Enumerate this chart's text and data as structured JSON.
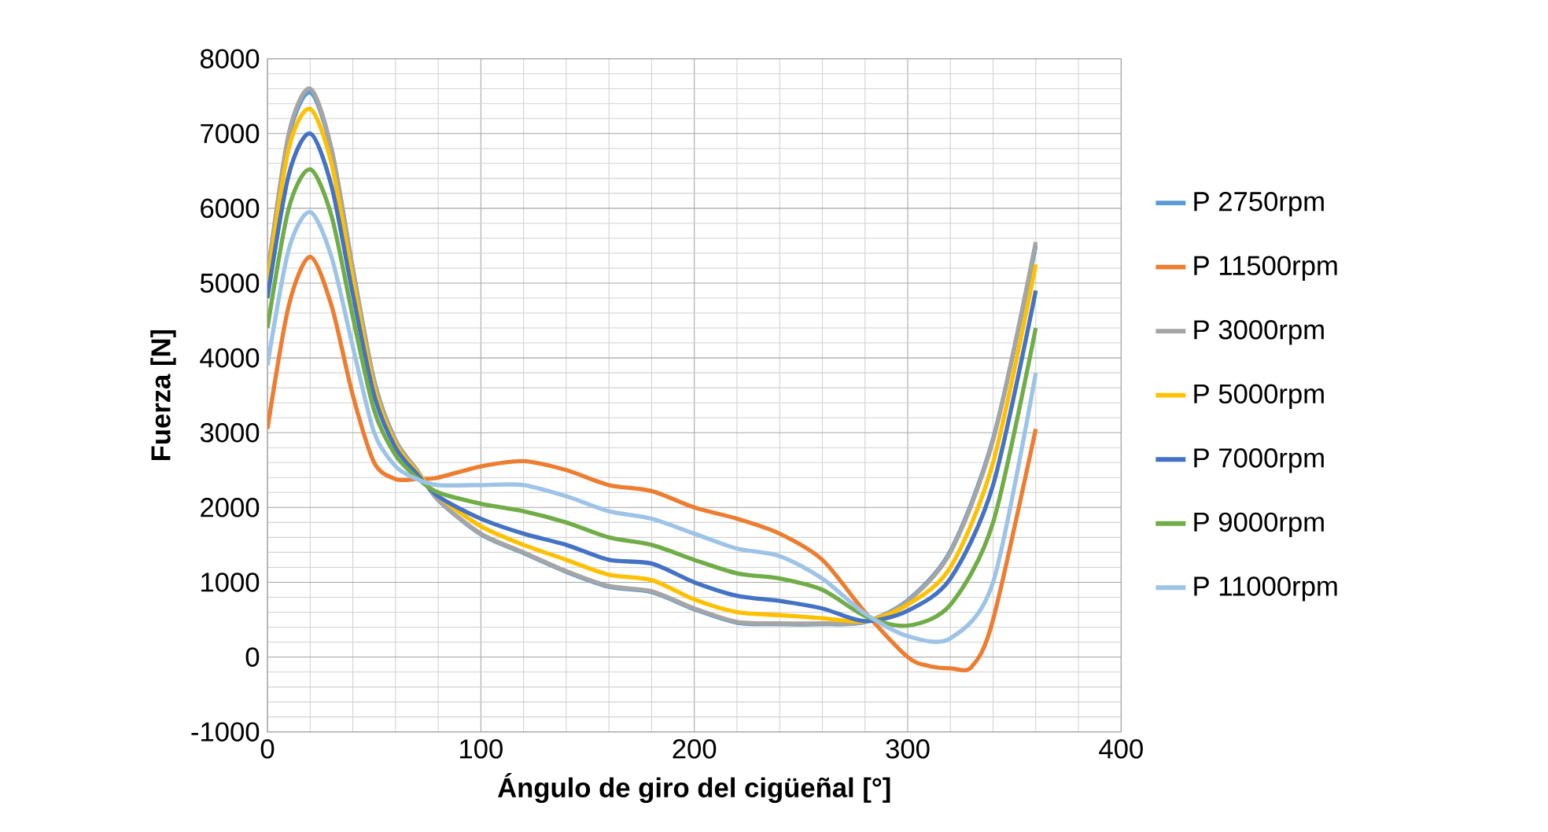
{
  "chart_data": {
    "type": "line",
    "xlabel": "Ángulo de giro del cigüeñal [°]",
    "ylabel": "Fuerza [N]",
    "x": [
      0,
      10,
      20,
      30,
      40,
      50,
      60,
      70,
      80,
      100,
      120,
      140,
      160,
      180,
      200,
      220,
      240,
      260,
      280,
      300,
      320,
      340,
      360
    ],
    "xlim": [
      0,
      400
    ],
    "xticks": [
      0,
      100,
      200,
      300,
      400
    ],
    "ylim": [
      -1000,
      8000
    ],
    "yticks": [
      -1000,
      0,
      1000,
      2000,
      3000,
      4000,
      5000,
      6000,
      7000,
      8000
    ],
    "grid": true,
    "legend": "right",
    "marker": "none",
    "line_style": "solid",
    "series": [
      {
        "name": "P 2750rpm",
        "color": "#5b9bd5",
        "values": [
          5050,
          6950,
          7550,
          6780,
          5180,
          3690,
          2900,
          2500,
          2100,
          1640,
          1390,
          1140,
          940,
          870,
          640,
          460,
          440,
          440,
          470,
          760,
          1420,
          2920,
          5500
        ]
      },
      {
        "name": "P 11500rpm",
        "color": "#ed7d31",
        "x": [
          0,
          10,
          20,
          30,
          40,
          50,
          60,
          70,
          80,
          100,
          120,
          140,
          160,
          180,
          200,
          220,
          240,
          260,
          280,
          300,
          310,
          320,
          330,
          340,
          360
        ],
        "values": [
          3050,
          4700,
          5350,
          4700,
          3500,
          2600,
          2380,
          2380,
          2400,
          2550,
          2620,
          2500,
          2300,
          2220,
          2000,
          1850,
          1650,
          1300,
          600,
          0,
          -120,
          -150,
          -130,
          500,
          3050
        ]
      },
      {
        "name": "P 3000rpm",
        "color": "#a5a5a5",
        "values": [
          5100,
          7000,
          7600,
          6800,
          5200,
          3700,
          2900,
          2500,
          2100,
          1650,
          1400,
          1150,
          950,
          880,
          650,
          470,
          450,
          450,
          470,
          750,
          1400,
          2900,
          5550
        ]
      },
      {
        "name": "P 5000rpm",
        "color": "#ffc000",
        "values": [
          5000,
          6800,
          7330,
          6600,
          5050,
          3600,
          2850,
          2480,
          2150,
          1750,
          1500,
          1300,
          1100,
          1030,
          770,
          600,
          560,
          520,
          480,
          700,
          1200,
          2600,
          5250
        ]
      },
      {
        "name": "P 7000rpm",
        "color": "#4472c4",
        "values": [
          4800,
          6450,
          7000,
          6300,
          4850,
          3500,
          2800,
          2450,
          2150,
          1850,
          1650,
          1500,
          1300,
          1250,
          1000,
          820,
          750,
          650,
          480,
          620,
          1050,
          2300,
          4900
        ]
      },
      {
        "name": "P 9000rpm",
        "color": "#70ad47",
        "values": [
          4400,
          6000,
          6520,
          5900,
          4550,
          3300,
          2700,
          2400,
          2200,
          2050,
          1950,
          1800,
          1600,
          1500,
          1300,
          1120,
          1050,
          900,
          550,
          420,
          700,
          1800,
          4400
        ]
      },
      {
        "name": "P 11000rpm",
        "color": "#9dc3e6",
        "values": [
          3900,
          5450,
          5950,
          5350,
          4150,
          3000,
          2550,
          2380,
          2300,
          2300,
          2300,
          2150,
          1950,
          1850,
          1650,
          1450,
          1350,
          1050,
          580,
          280,
          250,
          1000,
          3800
        ]
      }
    ]
  }
}
